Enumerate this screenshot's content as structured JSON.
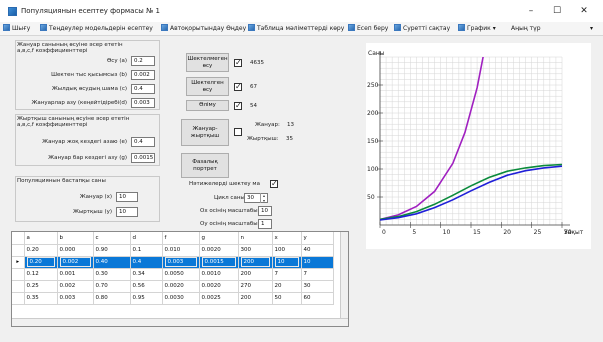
{
  "window": {
    "title": "Популяциянын есептеу формасы № 1",
    "min_glyph": "–",
    "max_glyph": "☐",
    "close_glyph": "✕"
  },
  "menu": {
    "items": [
      "Шығу",
      "Теңдеулер модельдерін есептеу",
      "Автоқорытындау Өңдеу",
      "Таблица мәліметтерді көру",
      "Есеп беру",
      "Суретті сақтау",
      "График"
    ],
    "extra": "Аңың түр",
    "overflow": "▾"
  },
  "panel1": {
    "header": "Жануар санының өсуіне әсер ететін а,в,с,f коэффициенттері",
    "rows": [
      {
        "label": "Өсу (а)",
        "value": "0.2"
      },
      {
        "label": "Шектен тыс қысымсыз (b)",
        "value": "0.002"
      },
      {
        "label": "Жылдық өсудың шама (c)",
        "value": "0.4"
      },
      {
        "label": "Жануарлар азу (кеңейтідіребі(d)",
        "value": "0.003"
      }
    ]
  },
  "panel2": {
    "header": "Жыртқыш санының өсуіне әсер ететін а,в,с,f коэффициенттері",
    "rows": [
      {
        "label": "Жануар жоқ кездегі азаю (e)",
        "value": "0.4"
      },
      {
        "label": "Жануар бар кездегі азу (g)",
        "value": "0.0015"
      }
    ]
  },
  "panel3": {
    "header": "Популяциянын бастапқы саны",
    "rows": [
      {
        "label": "Жануар (x)",
        "value": "10"
      },
      {
        "label": "Жыртқыш (y)",
        "value": "10"
      }
    ]
  },
  "middle": {
    "btn1": "Шектелмеген өсу",
    "v1": "4635",
    "btn2": "Шектелген өсу",
    "v2": "67",
    "btn3": "Өліму",
    "v3": "54",
    "btn4": "Жануар-жыртқыш",
    "legend1_label": "Жануар:",
    "legend1_value": "13",
    "legend2_label": "Жыртқыш:",
    "legend2_value": "35",
    "btn5": "Фазалық портрет",
    "check_label": "Нәтижелерді шектеу ма",
    "cycle_label": "Цикл саны N",
    "cycle_value": "30",
    "ox_label": "Ox осінің масштабы",
    "ox_value": "10",
    "oy_label": "Oy осінің масштабы",
    "oy_value": "1"
  },
  "table": {
    "columns": [
      "a",
      "b",
      "c",
      "d",
      "f",
      "g",
      "n",
      "x",
      "y"
    ],
    "row_pointer": "▸",
    "rows": [
      [
        "0.20",
        "0.000",
        "0.90",
        "0.1",
        "0.010",
        "0.0020",
        "300",
        "100",
        "40"
      ],
      [
        "0.20",
        "0.002",
        "0.40",
        "0.4",
        "0.003",
        "0.0015",
        "200",
        "10",
        "10"
      ],
      [
        "0.12",
        "0.001",
        "0.30",
        "0.34",
        "0.0050",
        "0.0010",
        "200",
        "7",
        "7"
      ],
      [
        "0.25",
        "0.002",
        "0.70",
        "0.56",
        "0.0020",
        "0.0020",
        "270",
        "20",
        "30"
      ],
      [
        "0.35",
        "0.003",
        "0.80",
        "0.95",
        "0.0030",
        "0.0025",
        "200",
        "50",
        "60"
      ]
    ],
    "selected_row": 1
  },
  "chart_data": {
    "type": "line",
    "ylabel": "Саны",
    "xlabel": "Уақыт",
    "xlim": [
      0,
      30
    ],
    "ylim": [
      0,
      300
    ],
    "xticks": [
      0,
      5,
      10,
      15,
      20,
      25,
      30
    ],
    "yticks": [
      50,
      100,
      150,
      200,
      250
    ],
    "grid": true,
    "series": [
      {
        "color": "#a020c0",
        "x": [
          0,
          3,
          6,
          9,
          12,
          14,
          16,
          17,
          18
        ],
        "y": [
          10,
          18,
          33,
          60,
          110,
          165,
          245,
          300,
          360
        ]
      },
      {
        "color": "#0b8a3c",
        "x": [
          0,
          3,
          6,
          9,
          12,
          15,
          18,
          21,
          24,
          27,
          30
        ],
        "y": [
          10,
          15,
          24,
          37,
          53,
          70,
          85,
          96,
          102,
          106,
          108
        ]
      },
      {
        "color": "#1f1fd8",
        "x": [
          0,
          3,
          6,
          9,
          12,
          15,
          18,
          21,
          24,
          27,
          30
        ],
        "y": [
          9,
          13,
          20,
          31,
          45,
          61,
          76,
          89,
          97,
          102,
          105
        ]
      }
    ]
  }
}
